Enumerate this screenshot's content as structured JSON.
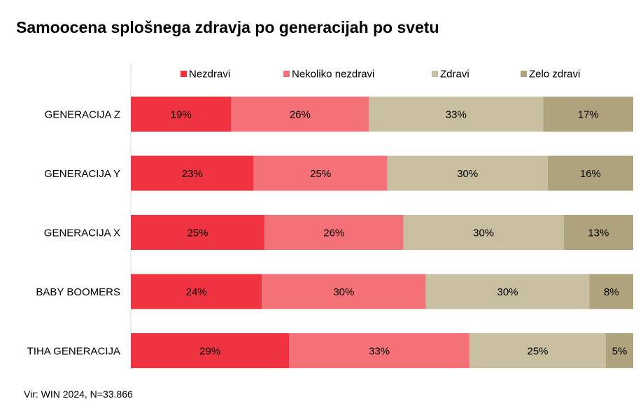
{
  "title": "Samoocena splošnega zdravja po generacijah po svetu",
  "source": "Vir: WIN 2024, N=33.866",
  "colors": {
    "Nezdravi": "#ef3340",
    "Nekoliko nezdravi": "#f47277",
    "Zdravi": "#c8bea0",
    "Zelo zdravi": "#afa37e",
    "axis": "#d9d9d9"
  },
  "chart_data": {
    "type": "bar",
    "orientation": "horizontal",
    "stacked": true,
    "title": "Samoocena splošnega zdravja po generacijah po svetu",
    "xlabel": "",
    "ylabel": "",
    "unit": "%",
    "legend_position": "top",
    "categories": [
      "GENERACIJA Z",
      "GENERACIJA Y",
      "GENERACIJA X",
      "BABY BOOMERS",
      "TIHA GENERACIJA"
    ],
    "series": [
      {
        "name": "Nezdravi",
        "values": [
          19,
          23,
          25,
          24,
          29
        ]
      },
      {
        "name": "Nekoliko nezdravi",
        "values": [
          26,
          25,
          26,
          30,
          33
        ]
      },
      {
        "name": "Zdravi",
        "values": [
          33,
          30,
          30,
          30,
          25
        ]
      },
      {
        "name": "Zelo zdravi",
        "values": [
          17,
          16,
          13,
          8,
          5
        ]
      }
    ]
  }
}
